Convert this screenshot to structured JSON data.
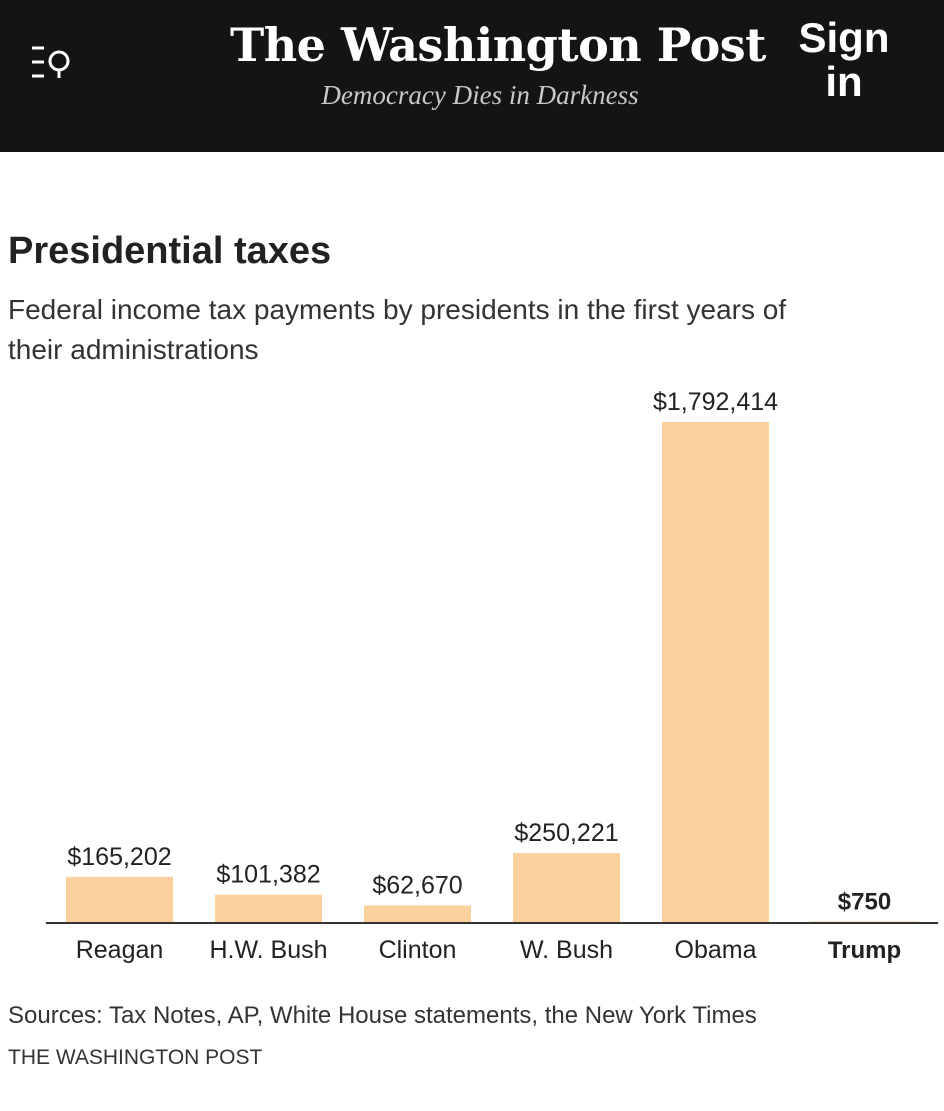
{
  "header": {
    "logo": "The Washington Post",
    "tagline": "Democracy Dies in Darkness",
    "signin_line1": "Sign",
    "signin_line2": "in",
    "menu_icon": "menu-search-icon"
  },
  "colors": {
    "bar": "#fcd19e",
    "axis": "#333333",
    "header_bg": "#141414"
  },
  "chart_data": {
    "type": "bar",
    "title": "Presidential taxes",
    "subtitle": "Federal income tax payments by presidents in the first years of their administrations",
    "categories": [
      "Reagan",
      "H.W. Bush",
      "Clinton",
      "W. Bush",
      "Obama",
      "Trump"
    ],
    "values": [
      165202,
      101382,
      62670,
      250221,
      1792414,
      750
    ],
    "value_labels": [
      "$165,202",
      "$101,382",
      "$62,670",
      "$250,221",
      "$1,792,414",
      "$750"
    ],
    "highlight": "Trump",
    "xlabel": "",
    "ylabel": "",
    "ylim": [
      0,
      1792414
    ],
    "grid": false
  },
  "footer": {
    "sources": "Sources: Tax Notes, AP, White House statements, the New York Times",
    "credit": "THE WASHINGTON POST"
  }
}
